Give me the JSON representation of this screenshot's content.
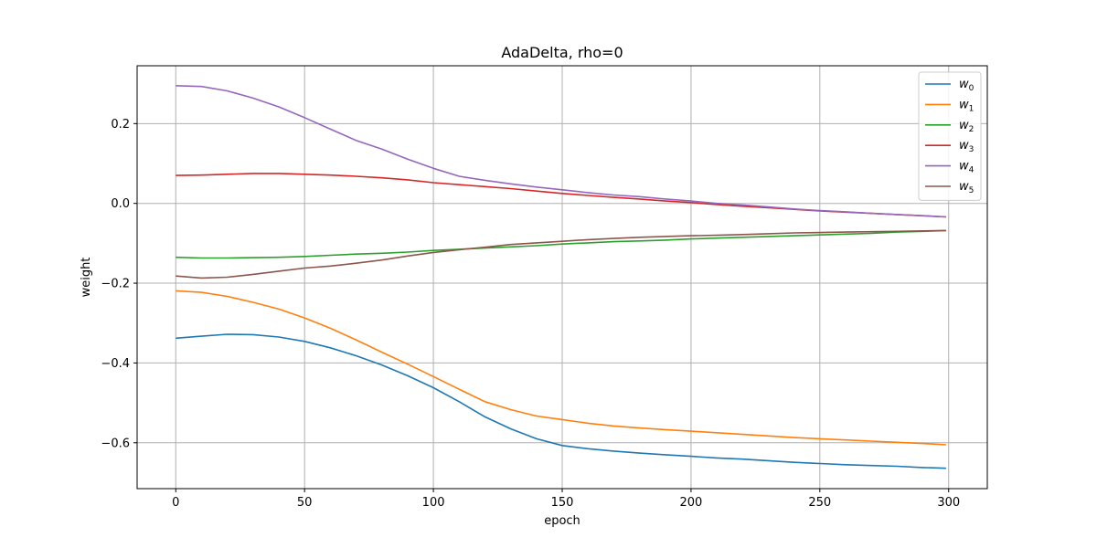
{
  "chart_data": {
    "type": "line",
    "title": "AdaDelta, rho=0",
    "xlabel": "epoch",
    "ylabel": "weight",
    "xlim": [
      -15,
      315
    ],
    "ylim": [
      -0.715,
      0.345
    ],
    "xticks": [
      0,
      50,
      100,
      150,
      200,
      250,
      300
    ],
    "xtick_labels": [
      "0",
      "50",
      "100",
      "150",
      "200",
      "250",
      "300"
    ],
    "yticks": [
      -0.6,
      -0.4,
      -0.2,
      0.0,
      0.2
    ],
    "ytick_labels": [
      "−0.6",
      "−0.4",
      "−0.2",
      "0.0",
      "0.2"
    ],
    "grid": true,
    "legend_position": "top-right",
    "x": [
      0,
      10,
      20,
      30,
      40,
      50,
      60,
      70,
      80,
      90,
      100,
      110,
      120,
      130,
      140,
      150,
      160,
      170,
      180,
      190,
      200,
      210,
      220,
      230,
      240,
      250,
      260,
      270,
      280,
      290,
      299
    ],
    "series": [
      {
        "name": "w0",
        "label_main": "w",
        "label_sub": "0",
        "color": "#1f77b4",
        "values": [
          -0.338,
          -0.333,
          -0.328,
          -0.329,
          -0.335,
          -0.346,
          -0.362,
          -0.382,
          -0.405,
          -0.432,
          -0.462,
          -0.497,
          -0.535,
          -0.565,
          -0.59,
          -0.607,
          -0.615,
          -0.621,
          -0.626,
          -0.63,
          -0.634,
          -0.638,
          -0.641,
          -0.645,
          -0.649,
          -0.652,
          -0.655,
          -0.657,
          -0.659,
          -0.662,
          -0.664
        ]
      },
      {
        "name": "w1",
        "label_main": "w",
        "label_sub": "1",
        "color": "#ff7f0e",
        "values": [
          -0.219,
          -0.223,
          -0.233,
          -0.248,
          -0.265,
          -0.287,
          -0.313,
          -0.342,
          -0.373,
          -0.403,
          -0.434,
          -0.466,
          -0.497,
          -0.517,
          -0.533,
          -0.542,
          -0.551,
          -0.558,
          -0.563,
          -0.567,
          -0.571,
          -0.575,
          -0.579,
          -0.583,
          -0.587,
          -0.59,
          -0.593,
          -0.596,
          -0.599,
          -0.602,
          -0.605
        ]
      },
      {
        "name": "w2",
        "label_main": "w",
        "label_sub": "2",
        "color": "#2ca02c",
        "values": [
          -0.135,
          -0.137,
          -0.137,
          -0.136,
          -0.135,
          -0.133,
          -0.13,
          -0.127,
          -0.125,
          -0.122,
          -0.118,
          -0.115,
          -0.112,
          -0.109,
          -0.106,
          -0.102,
          -0.099,
          -0.096,
          -0.094,
          -0.092,
          -0.089,
          -0.087,
          -0.085,
          -0.083,
          -0.081,
          -0.079,
          -0.077,
          -0.075,
          -0.072,
          -0.07,
          -0.068
        ]
      },
      {
        "name": "w3",
        "label_main": "w",
        "label_sub": "3",
        "color": "#d62728",
        "values": [
          0.07,
          0.071,
          0.073,
          0.075,
          0.075,
          0.073,
          0.071,
          0.068,
          0.064,
          0.059,
          0.052,
          0.047,
          0.042,
          0.037,
          0.031,
          0.025,
          0.02,
          0.015,
          0.011,
          0.006,
          0.002,
          -0.003,
          -0.007,
          -0.011,
          -0.015,
          -0.019,
          -0.022,
          -0.025,
          -0.028,
          -0.031,
          -0.034
        ]
      },
      {
        "name": "w4",
        "label_main": "w",
        "label_sub": "4",
        "color": "#9467bd",
        "values": [
          0.295,
          0.293,
          0.282,
          0.264,
          0.242,
          0.215,
          0.186,
          0.158,
          0.136,
          0.111,
          0.088,
          0.068,
          0.058,
          0.049,
          0.041,
          0.034,
          0.027,
          0.021,
          0.017,
          0.011,
          0.006,
          0.0,
          -0.004,
          -0.009,
          -0.014,
          -0.018,
          -0.021,
          -0.025,
          -0.028,
          -0.031,
          -0.034
        ]
      },
      {
        "name": "w5",
        "label_main": "w",
        "label_sub": "5",
        "color": "#8c564b",
        "values": [
          -0.182,
          -0.187,
          -0.185,
          -0.178,
          -0.17,
          -0.162,
          -0.157,
          -0.15,
          -0.142,
          -0.132,
          -0.123,
          -0.116,
          -0.11,
          -0.103,
          -0.099,
          -0.095,
          -0.091,
          -0.088,
          -0.085,
          -0.083,
          -0.081,
          -0.08,
          -0.078,
          -0.076,
          -0.074,
          -0.073,
          -0.072,
          -0.071,
          -0.07,
          -0.069,
          -0.068
        ]
      }
    ]
  }
}
